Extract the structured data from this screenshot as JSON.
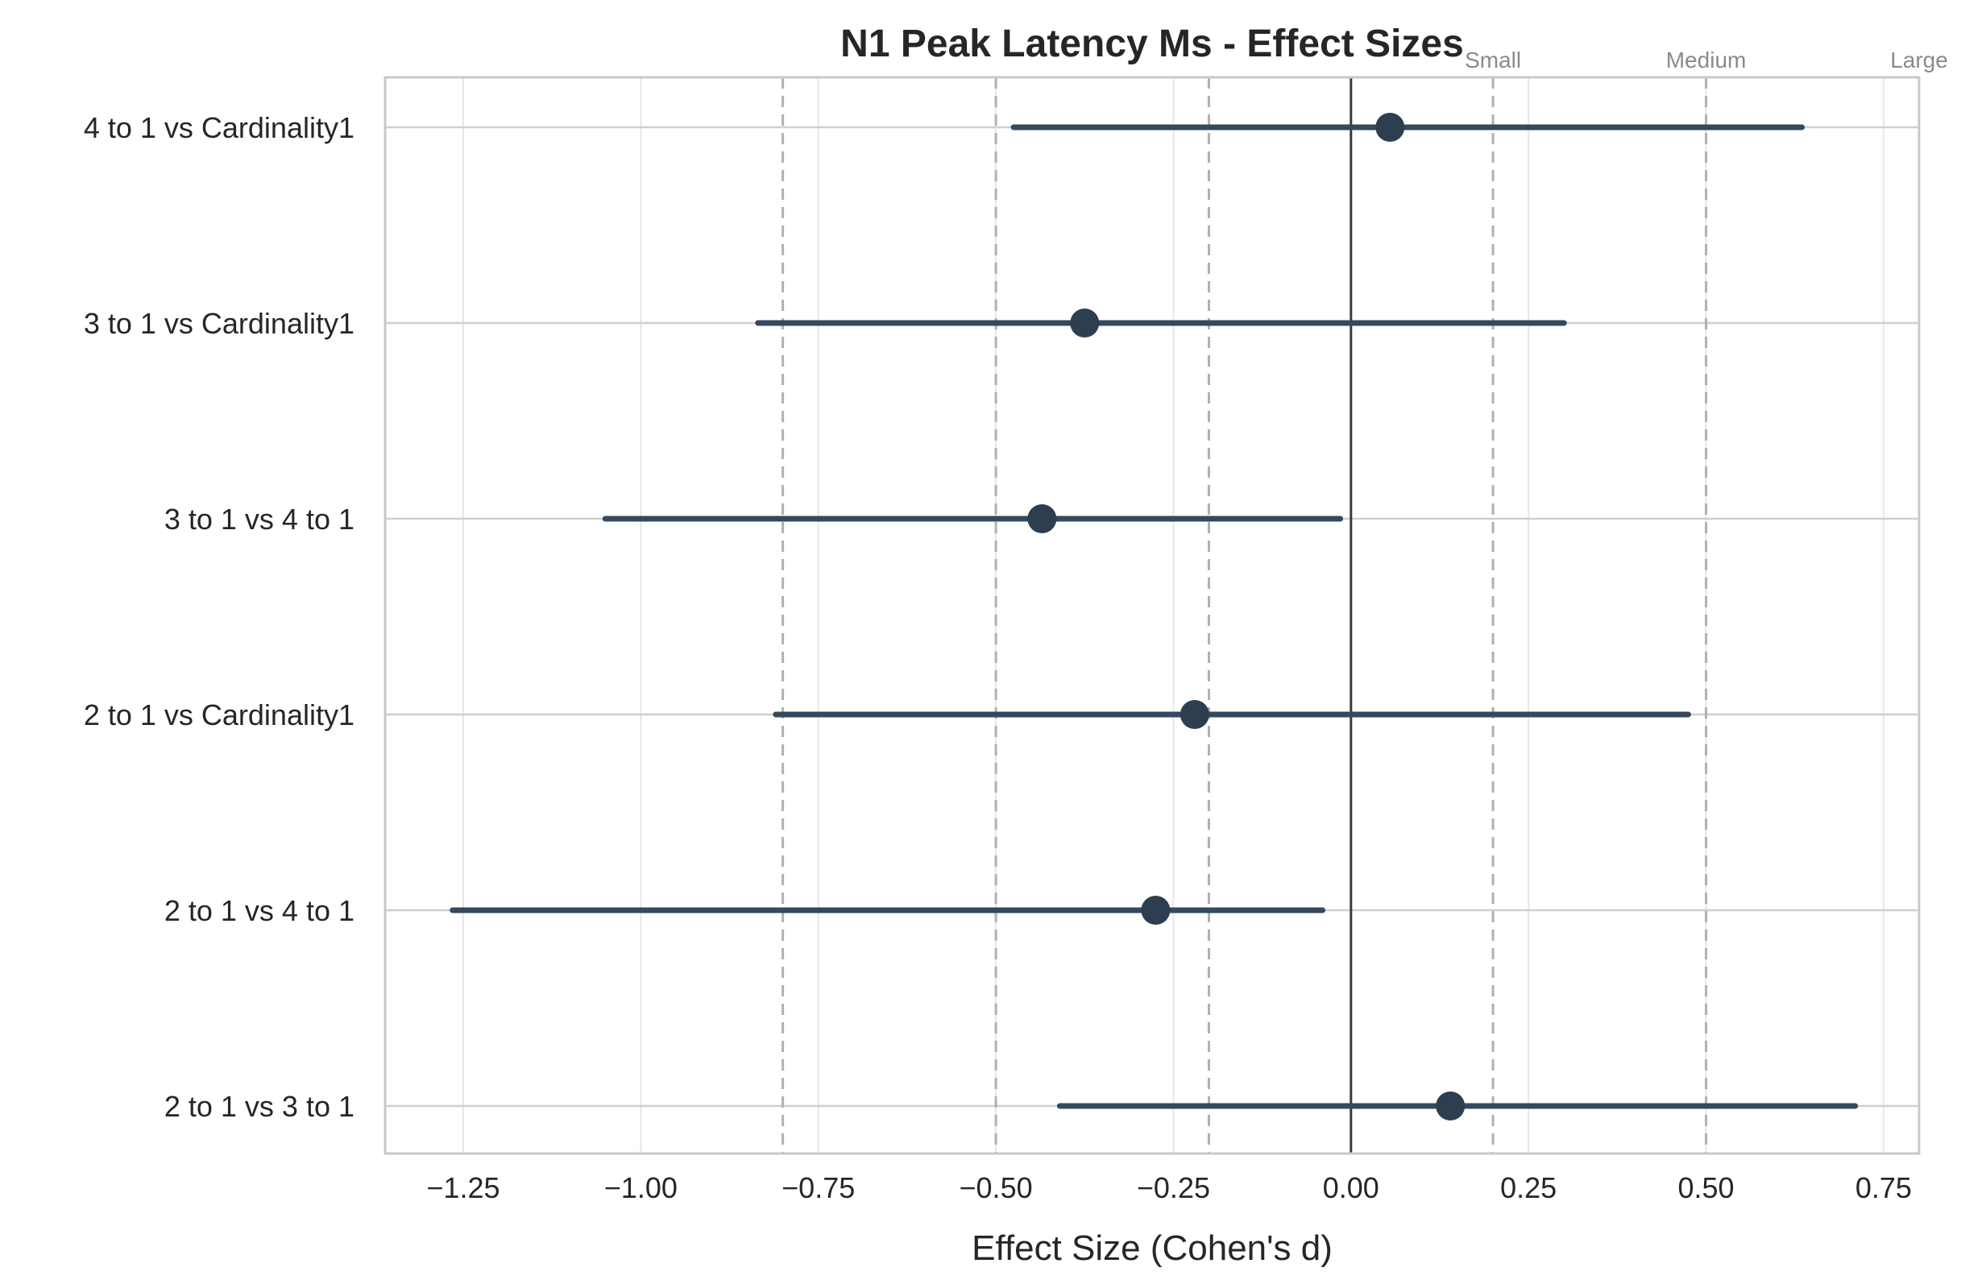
{
  "chart_data": {
    "type": "scatter",
    "title": "N1 Peak Latency Ms - Effect Sizes",
    "xlabel": "Effect Size (Cohen's d)",
    "ylabel": "",
    "xlim": [
      -1.36,
      0.8
    ],
    "xticks": [
      -1.25,
      -1.0,
      -0.75,
      -0.5,
      -0.25,
      0.0,
      0.25,
      0.5,
      0.75
    ],
    "xtick_labels": [
      "−1.25",
      "−1.00",
      "−0.75",
      "−0.50",
      "−0.25",
      "0.00",
      "0.25",
      "0.50",
      "0.75"
    ],
    "grid": true,
    "categories": [
      "4 to 1 vs Cardinality1",
      "3 to 1 vs Cardinality1",
      "3 to 1 vs 4 to 1",
      "2 to 1 vs Cardinality1",
      "2 to 1 vs 4 to 1",
      "2 to 1 vs 3 to 1"
    ],
    "effect_size": [
      0.055,
      -0.375,
      -0.435,
      -0.22,
      -0.275,
      0.14
    ],
    "ci_lower": [
      -0.475,
      -0.835,
      -1.05,
      -0.81,
      -1.265,
      -0.41
    ],
    "ci_upper": [
      0.635,
      0.3,
      -0.015,
      0.475,
      -0.04,
      0.71
    ],
    "zero_line": 0.0,
    "reference_lines": [
      {
        "value": -0.8,
        "label": ""
      },
      {
        "value": -0.5,
        "label": ""
      },
      {
        "value": -0.2,
        "label": ""
      },
      {
        "value": 0.2,
        "label": "Small"
      },
      {
        "value": 0.5,
        "label": "Medium"
      },
      {
        "value": 0.8,
        "label": "Large"
      }
    ],
    "colors": {
      "point": "#2c3e50",
      "ci": "#34495e",
      "zero_line": "#3a3a3a",
      "ref_line": "#b0b0b0",
      "grid": "#e6e6e6",
      "spine": "#c8c8c8"
    }
  }
}
